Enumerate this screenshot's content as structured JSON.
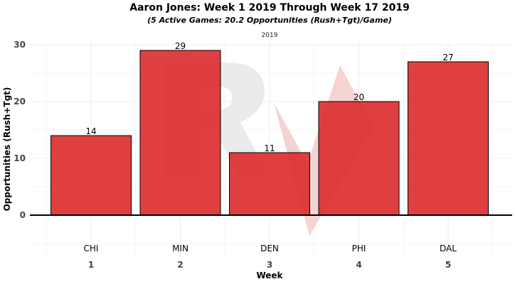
{
  "chart_data": {
    "type": "bar",
    "title": "Aaron Jones: Week 1 2019 Through Week 17 2019",
    "subtitle": "(5 Active Games: 20.2 Opportunities (Rush+Tgt)/Game)",
    "facet_label": "2019",
    "xlabel": "Week",
    "ylabel": "Opportunities (Rush+Tgt)",
    "categories": [
      "1",
      "2",
      "3",
      "4",
      "5"
    ],
    "opponents": [
      "CHI",
      "MIN",
      "DEN",
      "PHI",
      "DAL"
    ],
    "values": [
      14,
      29,
      11,
      20,
      27
    ],
    "value_labels": [
      "14",
      "29",
      "11",
      "20",
      "27"
    ],
    "yticks": [
      0,
      10,
      20,
      30
    ],
    "ytick_labels": [
      "0",
      "10",
      "20",
      "30"
    ],
    "ylim": [
      -5,
      31
    ],
    "bar_color": "#dc2a2b",
    "bar_edge_color": "#000000",
    "grid": true,
    "watermark": "RV"
  }
}
